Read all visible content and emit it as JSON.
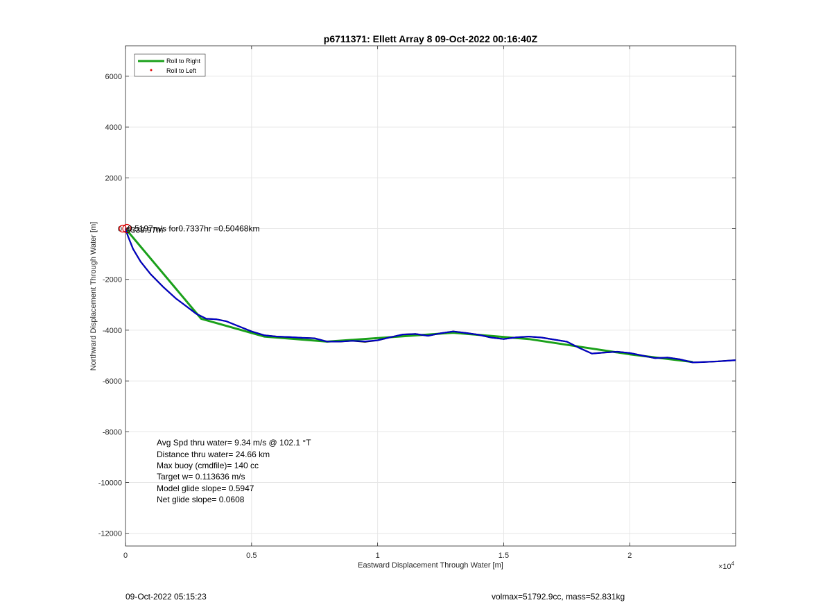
{
  "chart_data": {
    "type": "line",
    "title": "p6711371: Ellett Array 8 09-Oct-2022 00:16:40Z",
    "xlabel": "Eastward Displacement Through Water [m]",
    "ylabel": "Northward Displacement Through Water [m]",
    "x_exponent_label": "×10",
    "x_exponent_power": "4",
    "xlim": [
      0,
      24200
    ],
    "ylim": [
      -12500,
      7200
    ],
    "x_ticks": [
      {
        "value": 0,
        "label": "0"
      },
      {
        "value": 5000,
        "label": "0.5"
      },
      {
        "value": 10000,
        "label": "1"
      },
      {
        "value": 15000,
        "label": "1.5"
      },
      {
        "value": 20000,
        "label": "2"
      }
    ],
    "y_ticks": [
      {
        "value": 6000,
        "label": "6000"
      },
      {
        "value": 4000,
        "label": "4000"
      },
      {
        "value": 2000,
        "label": "2000"
      },
      {
        "value": 0,
        "label": "0"
      },
      {
        "value": -2000,
        "label": "-2000"
      },
      {
        "value": -4000,
        "label": "-4000"
      },
      {
        "value": -6000,
        "label": "-6000"
      },
      {
        "value": -8000,
        "label": "-8000"
      },
      {
        "value": -10000,
        "label": "-10000"
      },
      {
        "value": -12000,
        "label": "-12000"
      }
    ],
    "grid": true,
    "legend_position": "top-left",
    "legend": [
      {
        "label": "Roll to Right",
        "style": "line",
        "color": "#1aa01a"
      },
      {
        "label": "Roll to Left",
        "style": "dot",
        "color": "#e00000"
      }
    ],
    "series": [
      {
        "name": "Roll to Right",
        "color": "#1aa01a",
        "x": [
          0,
          3000,
          5500,
          8000,
          13000,
          16000,
          18000,
          20000,
          22500
        ],
        "y": [
          0,
          -3550,
          -4250,
          -4450,
          -4100,
          -4350,
          -4650,
          -4950,
          -5250
        ]
      },
      {
        "color": "#000000",
        "x": [
          0,
          100,
          300,
          600,
          1000,
          1500,
          2000,
          2400,
          2800,
          3200,
          3600,
          4000,
          4500,
          5000,
          5500,
          6000,
          6500,
          7000,
          7500,
          8000,
          8500,
          9000,
          9500,
          10000,
          10500,
          11000,
          11500,
          12000,
          12500,
          13000,
          13500,
          14000,
          14500,
          15000,
          15500,
          16000,
          16500,
          17000,
          17500,
          18000,
          18500,
          19000,
          19500,
          20000,
          20500,
          21000,
          21500,
          22000,
          22500,
          23000,
          23500,
          24200
        ],
        "y": [
          0,
          -300,
          -800,
          -1300,
          -1800,
          -2300,
          -2750,
          -3050,
          -3350,
          -3550,
          -3570,
          -3650,
          -3850,
          -4050,
          -4200,
          -4250,
          -4270,
          -4300,
          -4320,
          -4450,
          -4450,
          -4420,
          -4460,
          -4400,
          -4280,
          -4170,
          -4150,
          -4220,
          -4120,
          -4050,
          -4110,
          -4180,
          -4290,
          -4350,
          -4280,
          -4250,
          -4290,
          -4370,
          -4450,
          -4700,
          -4920,
          -4880,
          -4850,
          -4900,
          -5000,
          -5100,
          -5080,
          -5150,
          -5270,
          -5250,
          -5230,
          -5180
        ]
      },
      {
        "color": "#0000cc",
        "x": [
          0,
          100,
          300,
          600,
          1000,
          1500,
          2000,
          2400,
          2800,
          3200,
          3600,
          4000,
          4500,
          5000,
          5500,
          6000,
          6500,
          7000,
          7500,
          8000,
          8500,
          9000,
          9500,
          10000,
          10500,
          11000,
          11500,
          12000,
          12500,
          13000,
          13500,
          14000,
          14500,
          15000,
          15500,
          16000,
          16500,
          17000,
          17500,
          18000,
          18500,
          19000,
          19500,
          20000,
          20500,
          21000,
          21500,
          22000,
          22500,
          23000,
          23500,
          24200
        ],
        "y": [
          0,
          -300,
          -800,
          -1300,
          -1800,
          -2300,
          -2750,
          -3050,
          -3350,
          -3550,
          -3570,
          -3650,
          -3850,
          -4050,
          -4200,
          -4250,
          -4270,
          -4300,
          -4320,
          -4450,
          -4450,
          -4420,
          -4440,
          -4400,
          -4280,
          -4170,
          -4150,
          -4220,
          -4120,
          -4050,
          -4110,
          -4180,
          -4290,
          -4350,
          -4280,
          -4250,
          -4290,
          -4370,
          -4450,
          -4700,
          -4920,
          -4880,
          -4850,
          -4900,
          -5000,
          -5100,
          -5080,
          -5150,
          -5270,
          -5250,
          -5230,
          -5180
        ]
      }
    ],
    "origin_label": "0.5197m/s for0.7337hr =0.50468km",
    "origin_overlap_label": "9339.97m",
    "stats": [
      "Avg Spd thru water=  9.34 m/s @ 102.1 °T",
      "Distance thru water= 24.66 km",
      "Max buoy (cmdfile)= 140 cc",
      "Target w= 0.113636 m/s",
      "Model glide slope= 0.5947",
      "Net glide slope= 0.0608"
    ]
  },
  "footer": {
    "left": "09-Oct-2022 05:15:23",
    "right": "volmax=51792.9cc, mass=52.831kg"
  }
}
